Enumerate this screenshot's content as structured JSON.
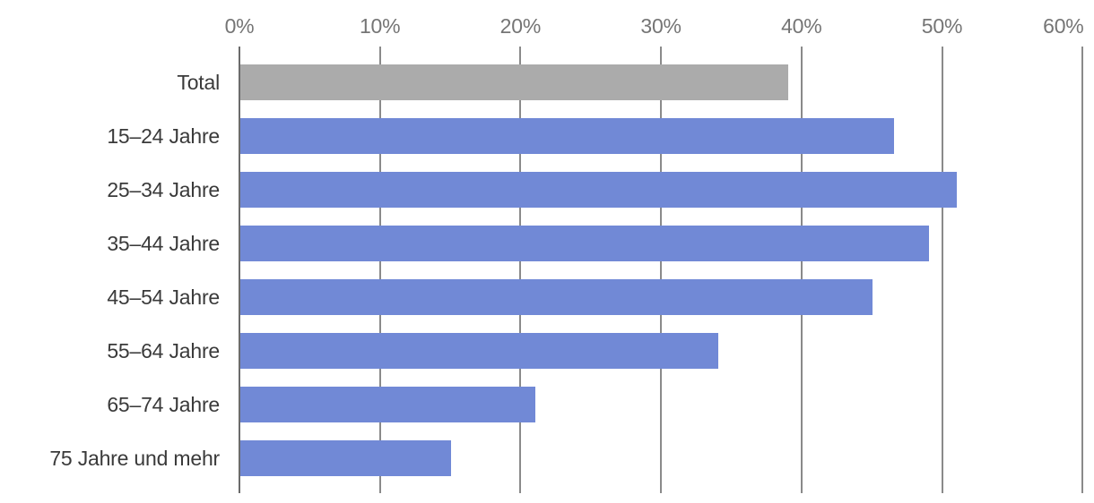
{
  "chart_data": {
    "type": "bar",
    "orientation": "horizontal",
    "title": "",
    "xlabel": "",
    "ylabel": "",
    "categories": [
      "Total",
      "15–24 Jahre",
      "25–34 Jahre",
      "35–44 Jahre",
      "45–54 Jahre",
      "55–64 Jahre",
      "65–74 Jahre",
      "75 Jahre und mehr"
    ],
    "values": [
      39,
      46.5,
      51,
      49,
      45,
      34,
      21,
      15
    ],
    "unit": "%",
    "xlim": [
      0,
      60
    ],
    "x_ticks": [
      0,
      10,
      20,
      30,
      40,
      50,
      60
    ],
    "x_tick_labels": [
      "0%",
      "10%",
      "20%",
      "30%",
      "40%",
      "50%",
      "60%"
    ],
    "axis_position": "top",
    "grid": "vertical-only",
    "legend": "none",
    "bar_colors": [
      "#ababab",
      "#7189d6",
      "#7189d6",
      "#7189d6",
      "#7189d6",
      "#7189d6",
      "#7189d6",
      "#7189d6"
    ]
  },
  "colors": {
    "background": "#ffffff",
    "bar_default": "#7189d6",
    "bar_total": "#ababab",
    "axis_line": "#6b6b6b",
    "gridline": "#8a8a8a",
    "tick_label": "#757575",
    "category_label": "#3a3a3a"
  }
}
